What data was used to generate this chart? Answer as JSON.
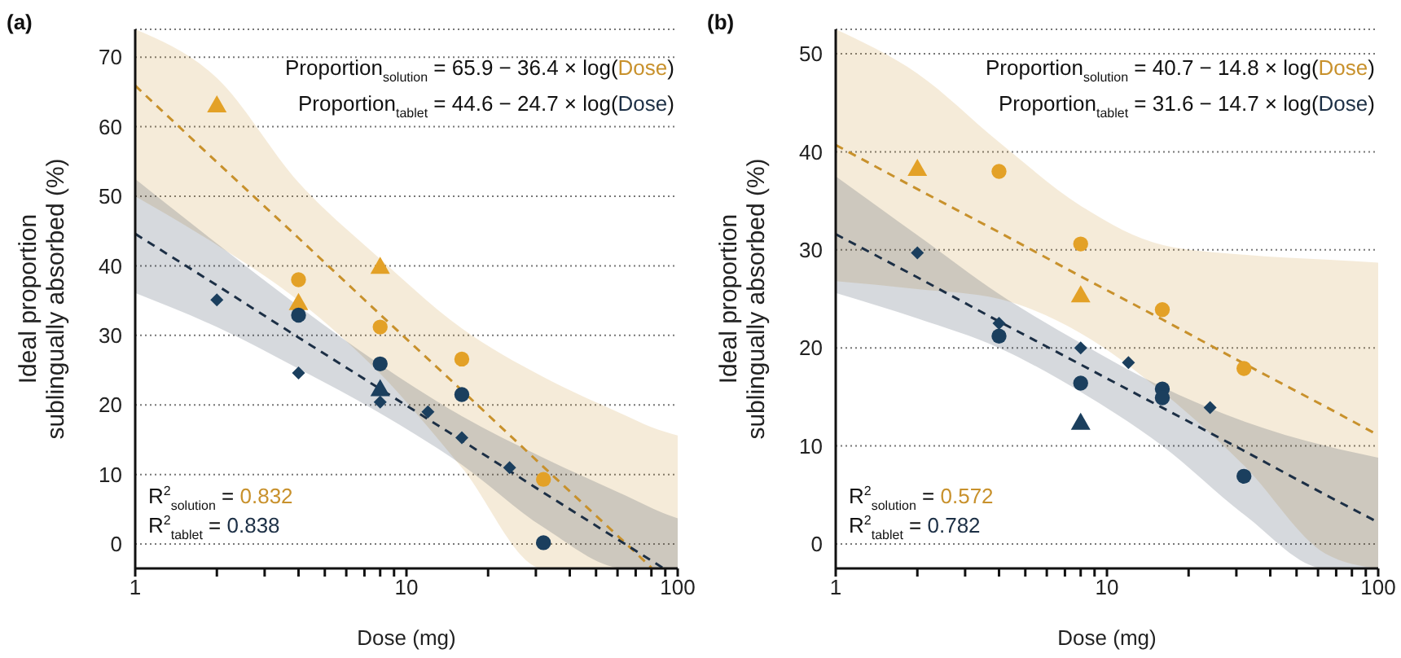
{
  "chart_data": [
    {
      "type": "scatter",
      "title": "(a)",
      "xlabel": "Dose (mg)",
      "ylabel": "Ideal proportion sublingually absorbed (%)",
      "log": "x",
      "grid": "y",
      "xlim": [
        1,
        100
      ],
      "xticks": [
        1,
        {
          "value": 2,
          "label": null
        },
        {
          "value": 3,
          "label": null
        },
        {
          "value": 4,
          "label": null
        },
        {
          "value": 5,
          "label": null
        },
        {
          "value": 6,
          "label": null
        },
        {
          "value": 7,
          "label": null
        },
        {
          "value": 8,
          "label": null
        },
        {
          "value": 9,
          "label": null
        },
        10,
        {
          "value": 20,
          "label": null
        },
        {
          "value": 30,
          "label": null
        },
        {
          "value": 40,
          "label": null
        },
        {
          "value": 50,
          "label": null
        },
        {
          "value": 60,
          "label": null
        },
        {
          "value": 70,
          "label": null
        },
        {
          "value": 80,
          "label": null
        },
        {
          "value": 90,
          "label": null
        },
        100
      ],
      "ylim": [
        -3.5,
        74
      ],
      "yticks": [
        0,
        10,
        20,
        30,
        40,
        50,
        60,
        70
      ],
      "annotations": [
        "Proportion$_{solution}$ = 65.9 − 36.4 × log(Dose)",
        "Proportion$_{tablet}$ = 44.6 − 24.7 × log(Dose)",
        "R$^{2}$$_{solution}$ = 0.832",
        "R$^{2}$$_{tablet}$ = 0.838"
      ],
      "series": [
        {
          "type": "line",
          "line_style": "dashed",
          "marker": "none",
          "color": "#c8912c",
          "x": [
            1,
            2,
            4,
            8,
            16,
            32,
            64,
            80,
            100
          ],
          "values": [
            65.9,
            54.9,
            44.0,
            33.0,
            22.1,
            11.1,
            0.2,
            -3.4,
            null
          ],
          "upper": [
            74,
            67,
            52,
            41,
            31,
            24,
            18.5,
            16.8,
            15.6
          ],
          "lower": [
            50,
            43,
            35,
            24.5,
            11,
            -3.5,
            -3.5,
            -3.5,
            -3.5
          ]
        },
        {
          "type": "line",
          "line_style": "dashed",
          "marker": "none",
          "color": "#1c2f45",
          "x": [
            1,
            2,
            4,
            8,
            16,
            32,
            64,
            88,
            100
          ],
          "values": [
            44.6,
            37.2,
            29.7,
            22.3,
            14.9,
            7.4,
            0.0,
            -3.4,
            null
          ],
          "upper": [
            52.5,
            43.2,
            34.2,
            25.8,
            18.4,
            12.4,
            7,
            4.5,
            3.7
          ],
          "lower": [
            36.1,
            31.2,
            25.2,
            18.8,
            11.4,
            2.4,
            -3.5,
            -3.5,
            -3.5
          ]
        },
        {
          "marker": "circle",
          "color": "#e3a127",
          "x": [
            4,
            8,
            16,
            32
          ],
          "values": [
            38,
            31.2,
            26.6,
            9.3
          ]
        },
        {
          "marker": "triangle",
          "color": "#e3a127",
          "x": [
            2,
            4,
            8
          ],
          "values": [
            63.1,
            34.7,
            39.9
          ]
        },
        {
          "marker": "circle",
          "color": "#1b3f5e",
          "x": [
            4,
            8,
            16,
            32
          ],
          "values": [
            32.9,
            25.9,
            21.5,
            0.2
          ]
        },
        {
          "marker": "triangle",
          "color": "#1b3f5e",
          "x": [
            8
          ],
          "values": [
            22.3
          ]
        },
        {
          "marker": "diamond",
          "color": "#1b3f5e",
          "x": [
            2,
            4,
            8,
            12,
            16,
            24
          ],
          "values": [
            35.1,
            24.6,
            20.4,
            19.0,
            15.3,
            11.0
          ]
        }
      ]
    },
    {
      "type": "scatter",
      "title": "(b)",
      "xlabel": "Dose (mg)",
      "ylabel": "Ideal proportion sublingually absorbed (%)",
      "log": "x",
      "grid": "y",
      "xlim": [
        1,
        100
      ],
      "xticks": [
        1,
        {
          "value": 2,
          "label": null
        },
        {
          "value": 3,
          "label": null
        },
        {
          "value": 4,
          "label": null
        },
        {
          "value": 5,
          "label": null
        },
        {
          "value": 6,
          "label": null
        },
        {
          "value": 7,
          "label": null
        },
        {
          "value": 8,
          "label": null
        },
        {
          "value": 9,
          "label": null
        },
        10,
        {
          "value": 20,
          "label": null
        },
        {
          "value": 30,
          "label": null
        },
        {
          "value": 40,
          "label": null
        },
        {
          "value": 50,
          "label": null
        },
        {
          "value": 60,
          "label": null
        },
        {
          "value": 70,
          "label": null
        },
        {
          "value": 80,
          "label": null
        },
        {
          "value": 90,
          "label": null
        },
        100
      ],
      "ylim": [
        -2.5,
        52.5
      ],
      "yticks": [
        0,
        10,
        20,
        30,
        40,
        50
      ],
      "annotations": [
        "Proportion$_{solution}$ = 40.7 − 14.8 × log(Dose)",
        "Proportion$_{tablet}$ = 31.6 − 14.7 × log(Dose)",
        "R$^{2}$$_{solution}$ = 0.572",
        "R$^{2}$$_{tablet}$ = 0.782"
      ],
      "series": [
        {
          "type": "line",
          "line_style": "dashed",
          "marker": "none",
          "color": "#c8912c",
          "x": [
            1,
            2,
            4,
            8,
            16,
            32,
            64,
            100
          ],
          "values": [
            40.7,
            36.2,
            31.8,
            27.3,
            22.9,
            18.4,
            14.0,
            11.1
          ],
          "upper": [
            52.5,
            48,
            41,
            34.5,
            30.5,
            29.5,
            29,
            28.7
          ],
          "lower": [
            26.8,
            26,
            25,
            21.5,
            15.5,
            8,
            -1,
            -2.5
          ]
        },
        {
          "type": "line",
          "line_style": "dashed",
          "marker": "none",
          "color": "#1c2f45",
          "x": [
            1,
            2,
            4,
            8,
            16,
            32,
            64,
            100
          ],
          "values": [
            31.6,
            27.2,
            22.7,
            18.3,
            13.9,
            9.5,
            5.0,
            2.2
          ],
          "upper": [
            37.5,
            31.5,
            25.5,
            20.5,
            16,
            12.5,
            10,
            8.8
          ],
          "lower": [
            25.6,
            23,
            20,
            15.5,
            10,
            3,
            -2.5,
            -2.5
          ]
        },
        {
          "marker": "circle",
          "color": "#e3a127",
          "x": [
            4,
            8,
            16,
            32
          ],
          "values": [
            38.0,
            30.6,
            23.9,
            17.9
          ]
        },
        {
          "marker": "triangle",
          "color": "#e3a127",
          "x": [
            2,
            4,
            8
          ],
          "values": [
            38.3,
            null,
            25.4
          ]
        },
        {
          "marker": "circle",
          "color": "#1b3f5e",
          "x": [
            4,
            8,
            16,
            16,
            32
          ],
          "values": [
            21.2,
            16.4,
            15.8,
            14.9,
            6.9
          ]
        },
        {
          "marker": "triangle",
          "color": "#1b3f5e",
          "x": [
            8
          ],
          "values": [
            12.4
          ]
        },
        {
          "marker": "diamond",
          "color": "#1b3f5e",
          "x": [
            2,
            4,
            8,
            12,
            24
          ],
          "values": [
            29.7,
            22.5,
            20.0,
            18.5,
            13.9
          ]
        }
      ]
    }
  ]
}
